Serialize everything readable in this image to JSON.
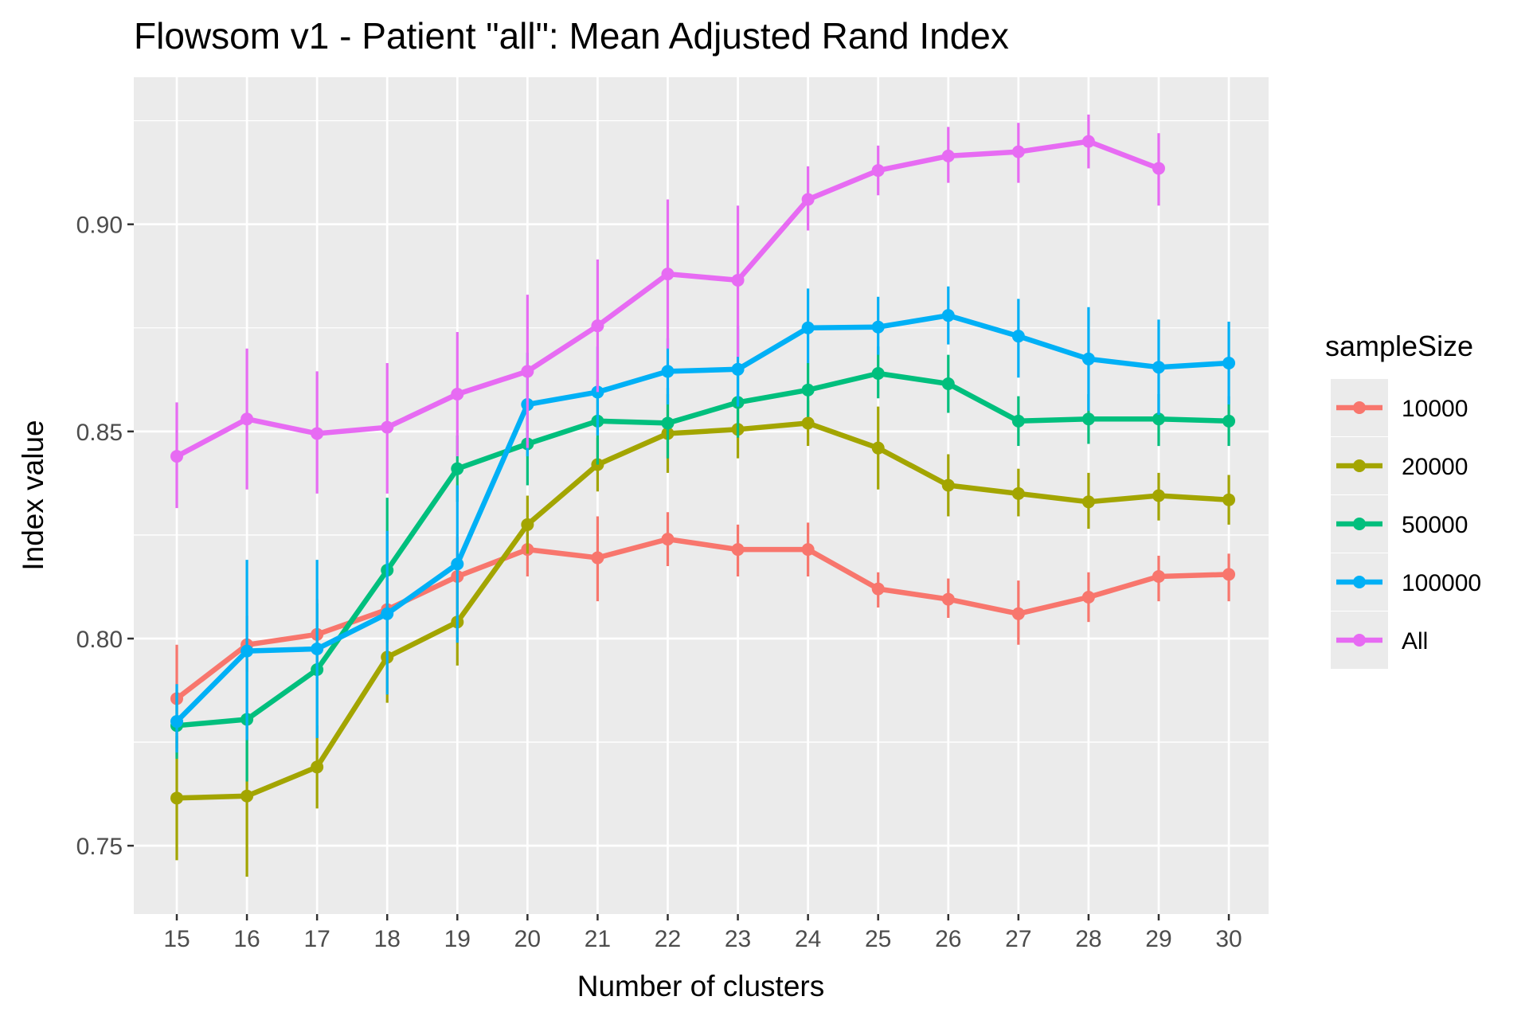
{
  "chart_data": {
    "type": "line",
    "title": "Flowsom v1 - Patient \"all\": Mean Adjusted Rand Index",
    "xlabel": "Number of clusters",
    "ylabel": "Index value",
    "x": [
      15,
      16,
      17,
      18,
      19,
      20,
      21,
      22,
      23,
      24,
      25,
      26,
      27,
      28,
      29,
      30
    ],
    "x_tick_labels": [
      "15",
      "16",
      "17",
      "18",
      "19",
      "20",
      "21",
      "22",
      "23",
      "24",
      "25",
      "26",
      "27",
      "28",
      "29",
      "30"
    ],
    "ylim": [
      0.7335,
      0.9355
    ],
    "y_ticks": [
      0.75,
      0.8,
      0.85,
      0.9
    ],
    "y_tick_labels": [
      "0.75",
      "0.80",
      "0.85",
      "0.90"
    ],
    "grid": true,
    "background": "#ebebeb",
    "legend": {
      "title": "sampleSize",
      "position": "right"
    },
    "series": [
      {
        "name": "10000",
        "color": "#F8766D",
        "values": [
          0.7855,
          0.7985,
          0.801,
          0.807,
          0.815,
          0.8215,
          0.8195,
          0.824,
          0.8215,
          0.8215,
          0.812,
          0.8095,
          0.806,
          0.81,
          0.815,
          0.8155
        ],
        "error_low": [
          0.7735,
          0.792,
          0.794,
          0.8005,
          0.807,
          0.815,
          0.809,
          0.8175,
          0.815,
          0.815,
          0.8075,
          0.805,
          0.7985,
          0.804,
          0.809,
          0.809
        ],
        "error_high": [
          0.7985,
          0.8055,
          0.8095,
          0.8165,
          0.8245,
          0.8265,
          0.8295,
          0.8305,
          0.8275,
          0.828,
          0.816,
          0.8145,
          0.814,
          0.816,
          0.82,
          0.8205
        ]
      },
      {
        "name": "20000",
        "color": "#A3A500",
        "values": [
          0.7615,
          0.762,
          0.769,
          0.7955,
          0.804,
          0.8275,
          0.842,
          0.8495,
          0.8505,
          0.852,
          0.846,
          0.837,
          0.835,
          0.833,
          0.8345,
          0.8335
        ],
        "error_low": [
          0.7465,
          0.7425,
          0.759,
          0.7845,
          0.7935,
          0.8205,
          0.8355,
          0.84,
          0.8435,
          0.8465,
          0.836,
          0.8295,
          0.8295,
          0.8265,
          0.8285,
          0.8275
        ],
        "error_high": [
          0.7765,
          0.7815,
          0.779,
          0.8065,
          0.814,
          0.8345,
          0.8485,
          0.859,
          0.8575,
          0.8575,
          0.856,
          0.8445,
          0.841,
          0.84,
          0.84,
          0.8395
        ]
      },
      {
        "name": "50000",
        "color": "#00BF7D",
        "values": [
          0.779,
          0.7805,
          0.7925,
          0.8165,
          0.841,
          0.847,
          0.8525,
          0.852,
          0.857,
          0.86,
          0.864,
          0.8615,
          0.8525,
          0.853,
          0.853,
          0.8525
        ],
        "error_low": [
          0.771,
          0.7655,
          0.776,
          0.799,
          0.833,
          0.837,
          0.842,
          0.8435,
          0.8485,
          0.8535,
          0.858,
          0.8545,
          0.8465,
          0.847,
          0.8465,
          0.8465
        ],
        "error_high": [
          0.787,
          0.795,
          0.8085,
          0.834,
          0.849,
          0.8575,
          0.8625,
          0.8605,
          0.866,
          0.8665,
          0.8705,
          0.8685,
          0.8585,
          0.859,
          0.859,
          0.8585
        ]
      },
      {
        "name": "100000",
        "color": "#00B0F6",
        "values": [
          0.78,
          0.797,
          0.7975,
          0.806,
          0.818,
          0.8565,
          0.8595,
          0.8645,
          0.865,
          0.875,
          0.8752,
          0.878,
          0.873,
          0.8675,
          0.8655,
          0.8665
        ],
        "error_low": [
          0.7725,
          0.7755,
          0.776,
          0.7865,
          0.799,
          0.844,
          0.849,
          0.8565,
          0.856,
          0.8665,
          0.8685,
          0.871,
          0.863,
          0.855,
          0.854,
          0.8565
        ],
        "error_high": [
          0.789,
          0.819,
          0.819,
          0.826,
          0.837,
          0.869,
          0.8705,
          0.8725,
          0.8755,
          0.8845,
          0.8825,
          0.885,
          0.882,
          0.88,
          0.877,
          0.8765
        ]
      },
      {
        "name": "All",
        "color": "#E76BF3",
        "values": [
          0.844,
          0.853,
          0.8495,
          0.851,
          0.859,
          0.8645,
          0.8755,
          0.888,
          0.8865,
          0.906,
          0.913,
          0.9165,
          0.9175,
          0.92,
          0.9135,
          null
        ],
        "error_low": [
          0.8315,
          0.836,
          0.835,
          0.835,
          0.844,
          0.846,
          0.8595,
          0.87,
          0.868,
          0.8985,
          0.907,
          0.91,
          0.91,
          0.9135,
          0.9045,
          null
        ],
        "error_high": [
          0.857,
          0.87,
          0.8645,
          0.8665,
          0.874,
          0.883,
          0.8915,
          0.906,
          0.9045,
          0.914,
          0.919,
          0.9235,
          0.9245,
          0.9265,
          0.922,
          null
        ]
      }
    ]
  }
}
